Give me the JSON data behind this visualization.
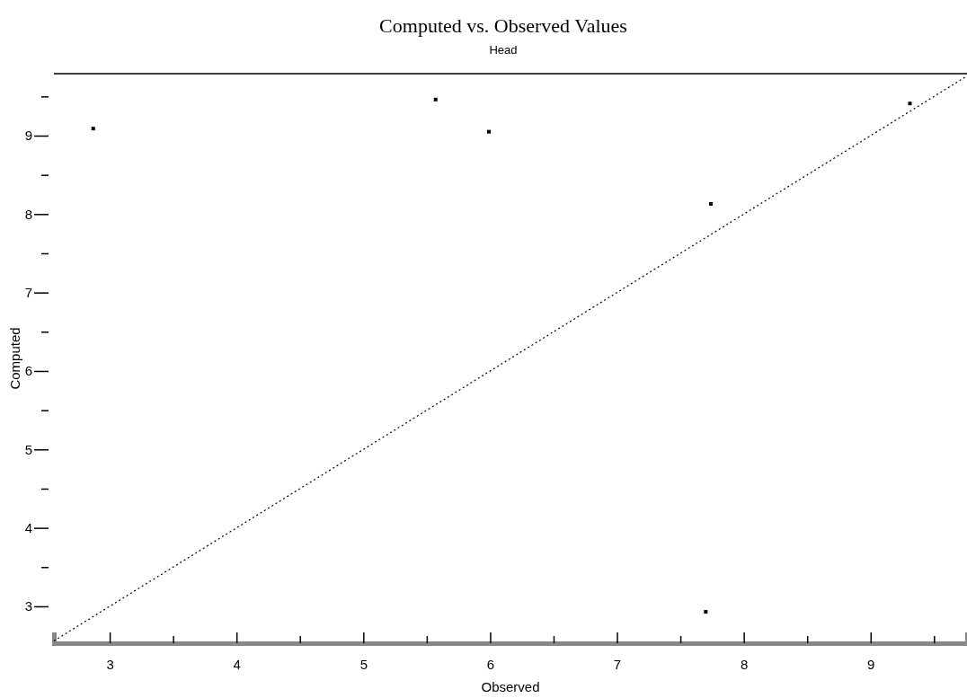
{
  "chart_data": {
    "type": "scatter",
    "title": "Computed vs. Observed Values",
    "subtitle": "Head",
    "xlabel": "Observed",
    "ylabel": "Computed",
    "xlim": [
      2.56,
      9.76
    ],
    "ylim": [
      2.53,
      9.79
    ],
    "xticks": [
      3,
      {
        "value": 3.5,
        "label": null
      },
      4,
      {
        "value": 4.5,
        "label": null
      },
      5,
      {
        "value": 5.5,
        "label": null
      },
      6,
      {
        "value": 6.5,
        "label": null
      },
      7,
      {
        "value": 7.5,
        "label": null
      },
      8,
      {
        "value": 8.5,
        "label": null
      },
      9,
      {
        "value": 9.5,
        "label": null
      }
    ],
    "yticks": [
      3,
      {
        "value": 3.5,
        "label": null
      },
      4,
      {
        "value": 4.5,
        "label": null
      },
      5,
      {
        "value": 5.5,
        "label": null
      },
      6,
      {
        "value": 6.5,
        "label": null
      },
      7,
      {
        "value": 7.5,
        "label": null
      },
      8,
      {
        "value": 8.5,
        "label": null
      },
      9,
      {
        "value": 9.5,
        "label": null
      }
    ],
    "grid": false,
    "series": [
      {
        "marker": "square",
        "color": "#000000",
        "x": [
          2.87,
          5.57,
          5.99,
          7.74,
          7.7,
          9.31
        ],
        "values": [
          9.09,
          9.46,
          9.05,
          8.13,
          2.93,
          9.41
        ]
      },
      {
        "type": "line",
        "color": "#000000",
        "line_style": "dotted",
        "x": [
          2.56,
          9.76
        ],
        "values": [
          2.56,
          9.76
        ]
      }
    ]
  }
}
